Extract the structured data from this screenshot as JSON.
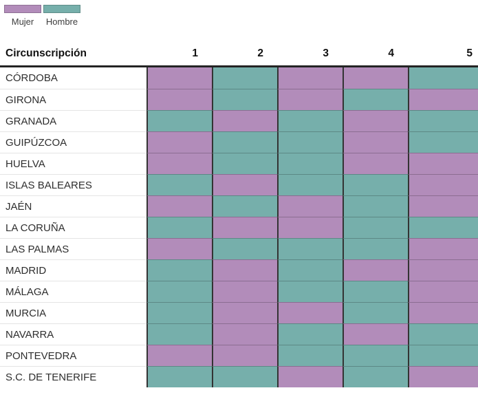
{
  "legend": {
    "items": [
      {
        "label": "Mujer",
        "key": "Mujer"
      },
      {
        "label": "Hombre",
        "key": "Hombre"
      }
    ]
  },
  "colors": {
    "mujer": "#b28cba",
    "hombre": "#76afab",
    "gridline": "#333333",
    "header_rule": "#242424",
    "row_separator": "#e4e4e4"
  },
  "chart_data": {
    "type": "heatmap",
    "title": "",
    "row_header_label": "Circunscripción",
    "columns": [
      "1",
      "2",
      "3",
      "4",
      "5"
    ],
    "legend_entries": [
      "Mujer",
      "Hombre"
    ],
    "rows": [
      {
        "label": "CÓRDOBA",
        "values": [
          "Mujer",
          "Hombre",
          "Mujer",
          "Mujer",
          "Hombre"
        ]
      },
      {
        "label": "GIRONA",
        "values": [
          "Mujer",
          "Hombre",
          "Mujer",
          "Hombre",
          "Mujer"
        ]
      },
      {
        "label": "GRANADA",
        "values": [
          "Hombre",
          "Mujer",
          "Hombre",
          "Mujer",
          "Hombre"
        ]
      },
      {
        "label": "GUIPÚZCOA",
        "values": [
          "Mujer",
          "Hombre",
          "Hombre",
          "Mujer",
          "Hombre"
        ]
      },
      {
        "label": "HUELVA",
        "values": [
          "Mujer",
          "Hombre",
          "Hombre",
          "Mujer",
          "Mujer"
        ]
      },
      {
        "label": "ISLAS BALEARES",
        "values": [
          "Hombre",
          "Mujer",
          "Hombre",
          "Hombre",
          "Mujer"
        ]
      },
      {
        "label": "JAÉN",
        "values": [
          "Mujer",
          "Hombre",
          "Mujer",
          "Hombre",
          "Mujer"
        ]
      },
      {
        "label": "LA CORUÑA",
        "values": [
          "Hombre",
          "Mujer",
          "Mujer",
          "Hombre",
          "Hombre"
        ]
      },
      {
        "label": "LAS PALMAS",
        "values": [
          "Mujer",
          "Hombre",
          "Hombre",
          "Hombre",
          "Mujer"
        ]
      },
      {
        "label": "MADRID",
        "values": [
          "Hombre",
          "Mujer",
          "Hombre",
          "Mujer",
          "Mujer"
        ]
      },
      {
        "label": "MÁLAGA",
        "values": [
          "Hombre",
          "Mujer",
          "Hombre",
          "Hombre",
          "Mujer"
        ]
      },
      {
        "label": "MURCIA",
        "values": [
          "Hombre",
          "Mujer",
          "Mujer",
          "Hombre",
          "Mujer"
        ]
      },
      {
        "label": "NAVARRA",
        "values": [
          "Hombre",
          "Mujer",
          "Hombre",
          "Mujer",
          "Hombre"
        ]
      },
      {
        "label": "PONTEVEDRA",
        "values": [
          "Mujer",
          "Mujer",
          "Hombre",
          "Hombre",
          "Hombre"
        ]
      },
      {
        "label": "S.C. DE TENERIFE",
        "values": [
          "Hombre",
          "Hombre",
          "Mujer",
          "Hombre",
          "Mujer"
        ]
      }
    ]
  }
}
